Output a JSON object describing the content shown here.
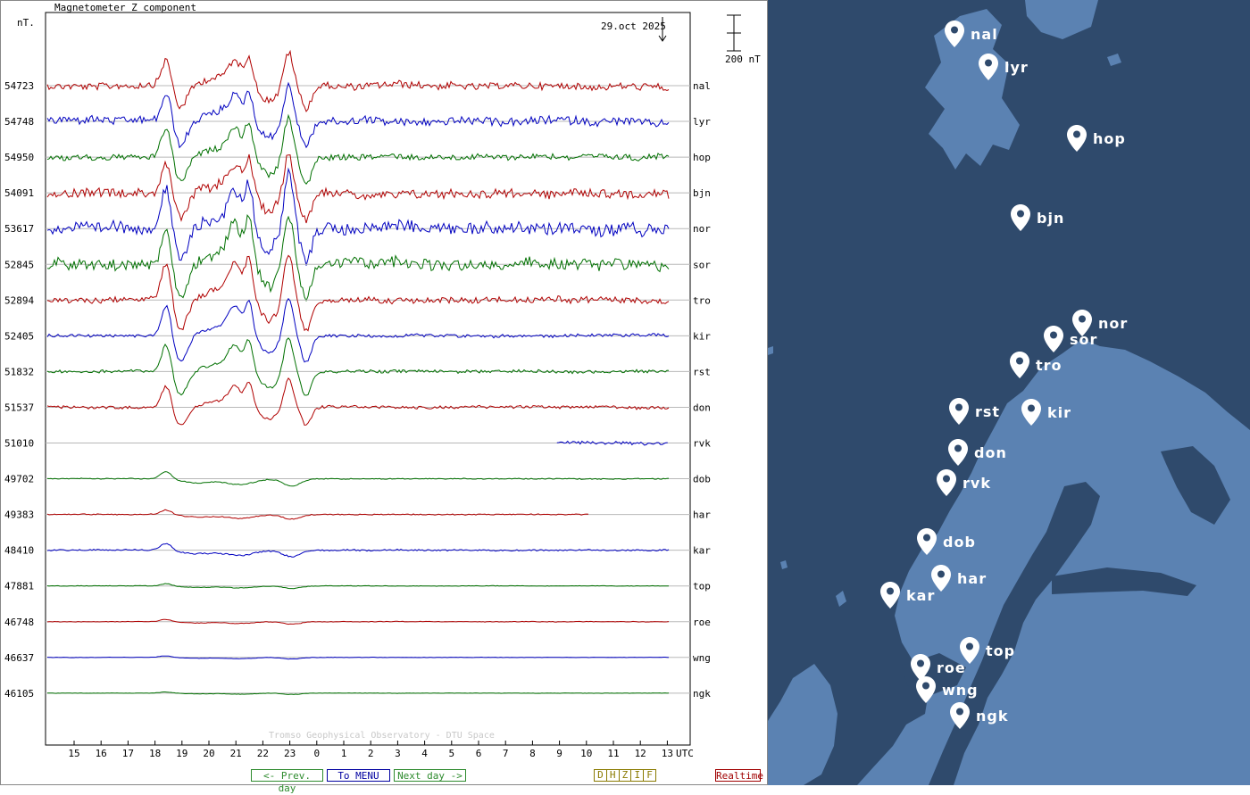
{
  "chart_data": {
    "type": "line",
    "title": "Magnetometer Z component",
    "unit_label": "nT.",
    "date": "29.oct 2025",
    "scale_label": "200 nT",
    "xlabel": "UTC",
    "x_ticks": [
      "15",
      "16",
      "17",
      "18",
      "19",
      "20",
      "21",
      "22",
      "23",
      "0",
      "1",
      "2",
      "3",
      "4",
      "5",
      "6",
      "7",
      "8",
      "9",
      "10",
      "11",
      "12",
      "13"
    ],
    "footer": "Tromso Geophysical Observatory - DTU Space",
    "colors": {
      "red": "#b00000",
      "blue": "#0000c0",
      "green": "#007000"
    },
    "stations": [
      {
        "name": "nal",
        "baseline": "54723",
        "color": "red",
        "amp": 0.85,
        "noise": 0.35,
        "start": 0,
        "end": 23
      },
      {
        "name": "lyr",
        "baseline": "54748",
        "color": "blue",
        "amp": 0.9,
        "noise": 0.4,
        "start": 0,
        "end": 23
      },
      {
        "name": "hop",
        "baseline": "54950",
        "color": "green",
        "amp": 1.0,
        "noise": 0.3,
        "start": 0,
        "end": 23
      },
      {
        "name": "bjn",
        "baseline": "54091",
        "color": "red",
        "amp": 1.0,
        "noise": 0.45,
        "start": 0,
        "end": 23
      },
      {
        "name": "nor",
        "baseline": "53617",
        "color": "blue",
        "amp": 1.3,
        "noise": 0.6,
        "start": 0,
        "end": 23
      },
      {
        "name": "sor",
        "baseline": "52845",
        "color": "green",
        "amp": 1.3,
        "noise": 0.55,
        "start": 0,
        "end": 23
      },
      {
        "name": "tro",
        "baseline": "52894",
        "color": "red",
        "amp": 1.2,
        "noise": 0.3,
        "start": 0,
        "end": 23
      },
      {
        "name": "kir",
        "baseline": "52405",
        "color": "blue",
        "amp": 1.0,
        "noise": 0.15,
        "start": 0,
        "end": 23
      },
      {
        "name": "rst",
        "baseline": "51832",
        "color": "green",
        "amp": 0.9,
        "noise": 0.15,
        "start": 0,
        "end": 23
      },
      {
        "name": "don",
        "baseline": "51537",
        "color": "red",
        "amp": 0.7,
        "noise": 0.15,
        "start": 0,
        "end": 23
      },
      {
        "name": "rvk",
        "baseline": "51010",
        "color": "blue",
        "amp": 0.3,
        "noise": 0.15,
        "start": 18.9,
        "end": 23
      },
      {
        "name": "dob",
        "baseline": "49702",
        "color": "green",
        "amp": 0.45,
        "noise": 0.05,
        "start": 0,
        "end": 23
      },
      {
        "name": "har",
        "baseline": "49383",
        "color": "red",
        "amp": 0.3,
        "noise": 0.05,
        "start": 0,
        "end": 20.1
      },
      {
        "name": "kar",
        "baseline": "48410",
        "color": "blue",
        "amp": 0.4,
        "noise": 0.07,
        "start": 0,
        "end": 23
      },
      {
        "name": "top",
        "baseline": "47881",
        "color": "green",
        "amp": 0.15,
        "noise": 0.03,
        "start": 0,
        "end": 23
      },
      {
        "name": "roe",
        "baseline": "46748",
        "color": "red",
        "amp": 0.15,
        "noise": 0.03,
        "start": 0,
        "end": 23
      },
      {
        "name": "wng",
        "baseline": "46637",
        "color": "blue",
        "amp": 0.1,
        "noise": 0.02,
        "start": 0,
        "end": 23
      },
      {
        "name": "ngk",
        "baseline": "46105",
        "color": "green",
        "amp": 0.08,
        "noise": 0.02,
        "start": 0,
        "end": 23
      }
    ]
  },
  "nav": {
    "prev": "<- Prev. day",
    "menu": "To MENU",
    "next": "Next day ->",
    "components": [
      "D",
      "H",
      "Z",
      "I",
      "F"
    ],
    "realtime": "Realtime"
  },
  "map": {
    "markers": [
      {
        "name": "nal"
      },
      {
        "name": "lyr"
      },
      {
        "name": "hop"
      },
      {
        "name": "bjn"
      },
      {
        "name": "nor"
      },
      {
        "name": "sor"
      },
      {
        "name": "tro"
      },
      {
        "name": "rst"
      },
      {
        "name": "kir"
      },
      {
        "name": "don"
      },
      {
        "name": "rvk"
      },
      {
        "name": "dob"
      },
      {
        "name": "har"
      },
      {
        "name": "kar"
      },
      {
        "name": "top"
      },
      {
        "name": "roe"
      },
      {
        "name": "wng"
      },
      {
        "name": "ngk"
      }
    ]
  }
}
